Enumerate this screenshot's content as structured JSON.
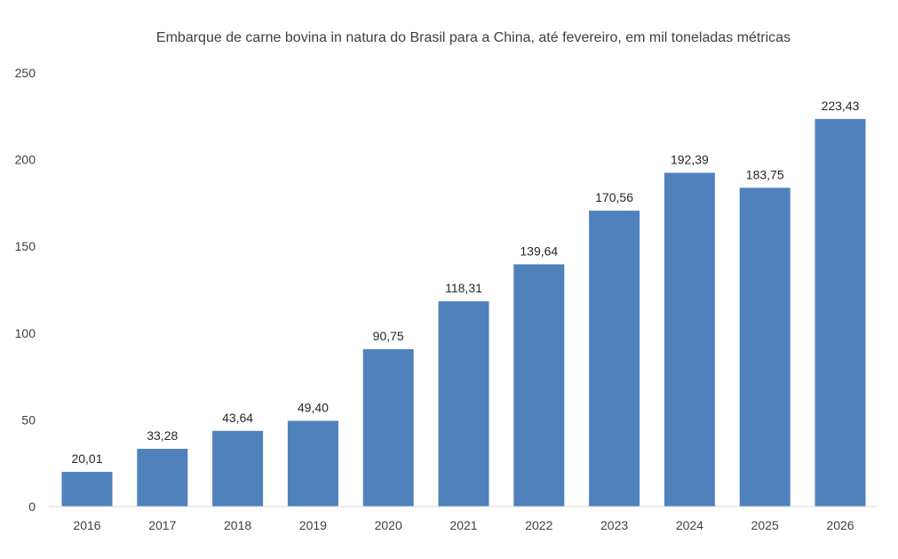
{
  "chart_data": {
    "type": "bar",
    "title": "Embarque de carne bovina in natura do Brasil para a China, até fevereiro, em mil toneladas métricas",
    "xlabel": "",
    "ylabel": "",
    "categories": [
      "2016",
      "2017",
      "2018",
      "2019",
      "2020",
      "2021",
      "2022",
      "2023",
      "2024",
      "2025",
      "2026"
    ],
    "values": [
      20.01,
      33.28,
      43.64,
      49.4,
      90.75,
      118.31,
      139.64,
      170.56,
      192.39,
      183.75,
      223.43
    ],
    "data_labels": [
      "20,01",
      "33,28",
      "43,64",
      "49,40",
      "90,75",
      "118,31",
      "139,64",
      "170,56",
      "192,39",
      "183,75",
      "223,43"
    ],
    "ylim": [
      0,
      250
    ],
    "yticks": [
      "0",
      "50",
      "100",
      "150",
      "200",
      "250"
    ],
    "ytick_values": [
      0,
      50,
      100,
      150,
      200,
      250
    ],
    "grid": false,
    "legend": "none",
    "colors": {
      "bar": "#4f81bd",
      "axis": "#d9d9d9",
      "text": "#404040"
    }
  }
}
